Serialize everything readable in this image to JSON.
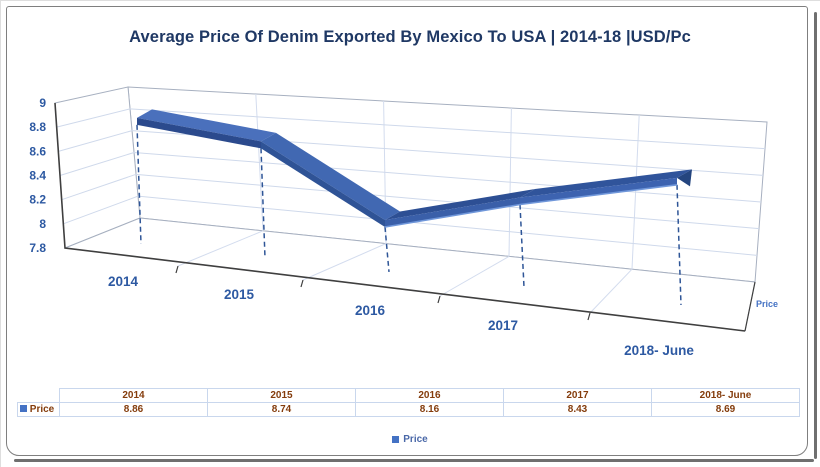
{
  "chart_data": {
    "type": "line",
    "variant": "3d-ribbon-with-drop-lines",
    "title": "Average Price Of Denim Exported By Mexico To USA | 2014-18 |USD/Pc",
    "categories": [
      "2014",
      "2015",
      "2016",
      "2017",
      "2018- June"
    ],
    "series": [
      {
        "name": "Price",
        "values": [
          8.86,
          8.74,
          8.16,
          8.43,
          8.69
        ]
      }
    ],
    "value_axis": {
      "min": 7.8,
      "max": 9,
      "tick_step": 0.2,
      "ticks": [
        9,
        8.8,
        8.6,
        8.4,
        8.2,
        8,
        7.8
      ]
    },
    "category_axis": {
      "labels": [
        "2014",
        "2015",
        "2016",
        "2017",
        "2018- June"
      ]
    },
    "series_axis_label": "Price",
    "legend": {
      "position": "bottom",
      "entries": [
        "Price"
      ]
    },
    "grid": true,
    "colors": {
      "series": "#4472C4",
      "axis_text": "#2D59A2",
      "title_text": "#1F3864",
      "table_text": "#843C0C",
      "drop_line": "#2E5597"
    }
  },
  "table": {
    "corner": "",
    "columns": [
      "2014",
      "2015",
      "2016",
      "2017",
      "2018- June"
    ],
    "rows": [
      {
        "label": "Price",
        "values": [
          "8.86",
          "8.74",
          "8.16",
          "8.43",
          "8.69"
        ]
      }
    ]
  }
}
